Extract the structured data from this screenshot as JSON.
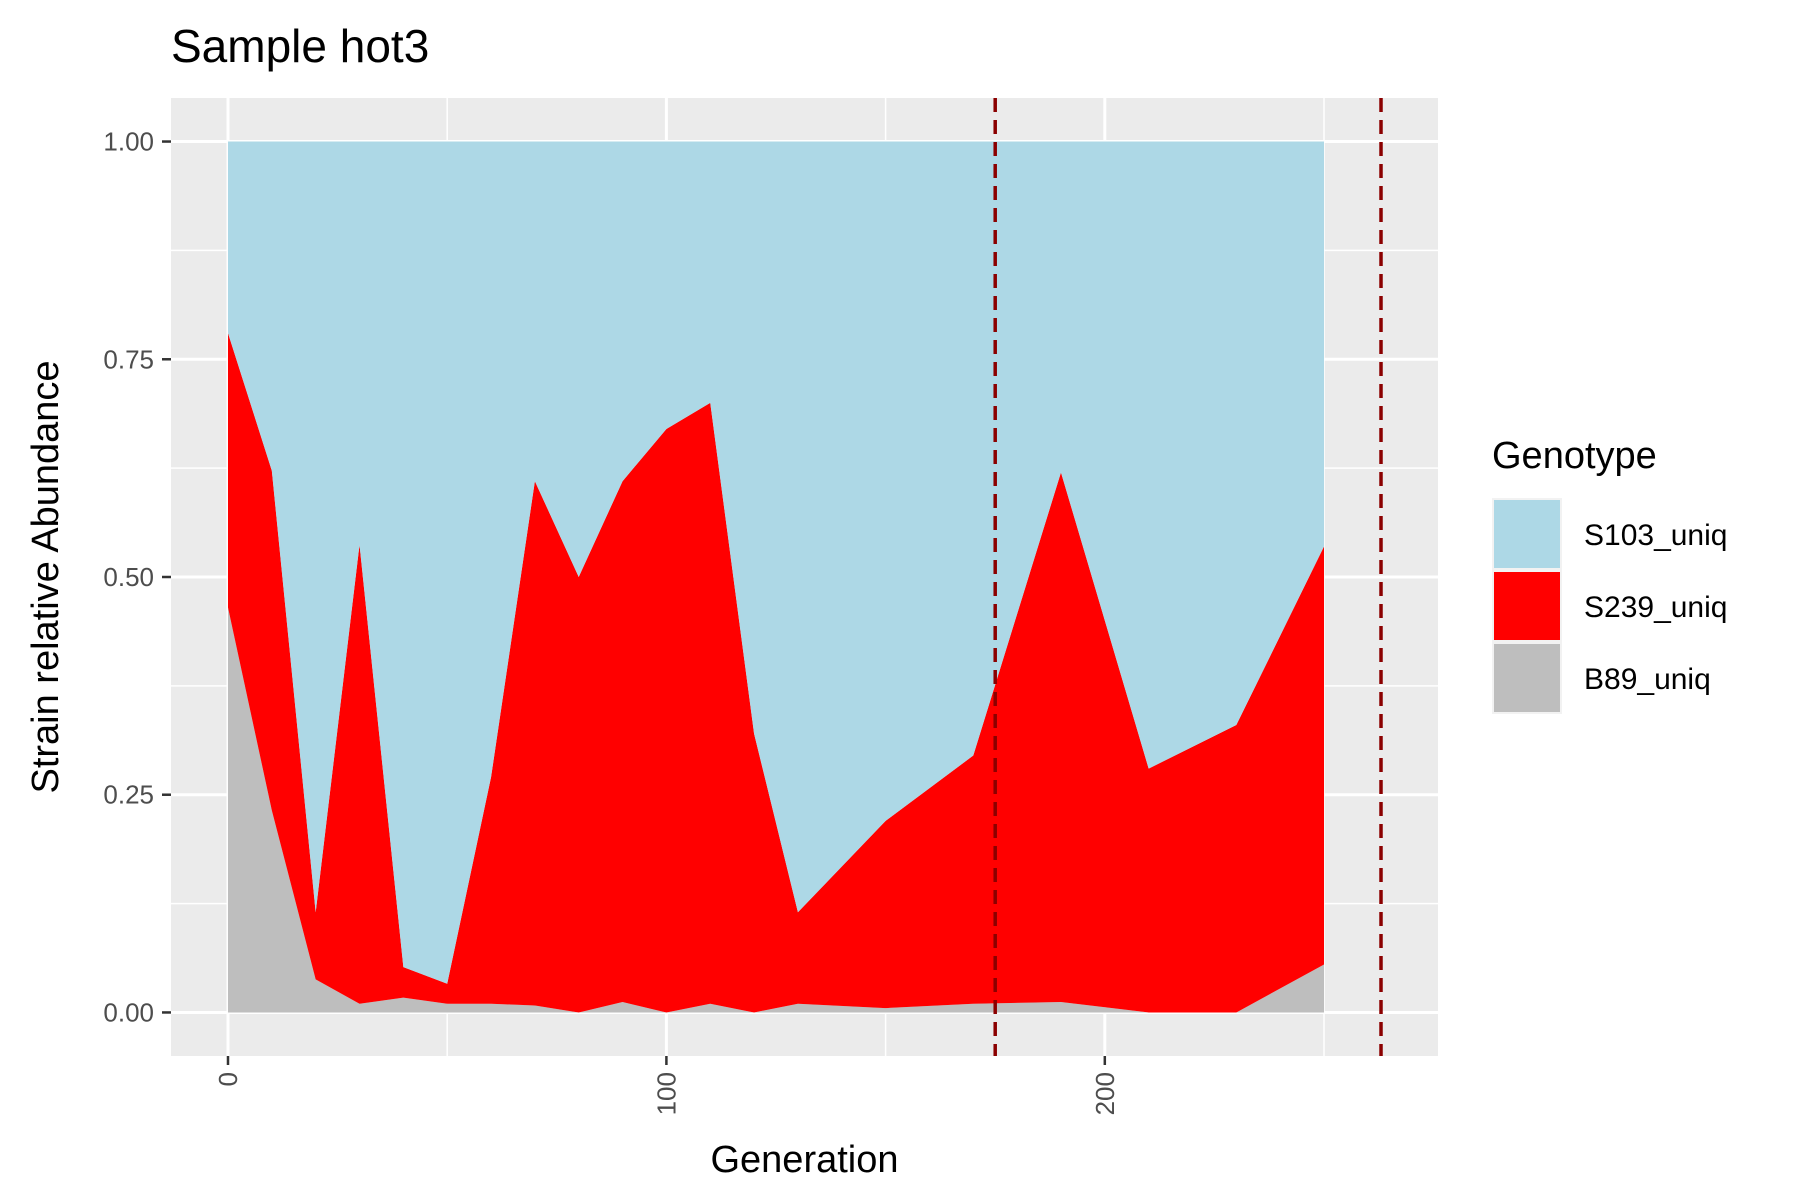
{
  "chart_data": {
    "type": "area",
    "stacked": true,
    "title": "Sample hot3",
    "xlabel": "Generation",
    "ylabel": "Strain relative Abundance",
    "xlim": [
      -13,
      276
    ],
    "ylim": [
      -0.05,
      1.05
    ],
    "x_ticks": [
      0,
      100,
      200
    ],
    "y_ticks": [
      0.0,
      0.25,
      0.5,
      0.75,
      1.0
    ],
    "x_tick_labels": [
      "0",
      "100",
      "200"
    ],
    "y_tick_labels": [
      "0.00",
      "0.25",
      "0.50",
      "0.75",
      "1.00"
    ],
    "grid": true,
    "legend_title": "Genotype",
    "legend_position": "right",
    "x": [
      0,
      10,
      20,
      30,
      40,
      50,
      60,
      70,
      80,
      90,
      100,
      110,
      120,
      130,
      150,
      170,
      190,
      210,
      230,
      250
    ],
    "series": [
      {
        "name": "S103_uniq",
        "color": "#add8e6",
        "values": [
          0.22,
          0.378,
          0.885,
          0.463,
          0.948,
          0.967,
          0.73,
          0.39,
          0.5,
          0.39,
          0.33,
          0.3,
          0.68,
          0.885,
          0.78,
          0.705,
          0.38,
          0.72,
          0.67,
          0.465
        ]
      },
      {
        "name": "S239_uniq",
        "color": "#ff0000",
        "values": [
          0.315,
          0.39,
          0.077,
          0.527,
          0.035,
          0.023,
          0.26,
          0.602,
          0.5,
          0.598,
          0.67,
          0.69,
          0.32,
          0.105,
          0.215,
          0.285,
          0.608,
          0.28,
          0.33,
          0.48
        ]
      },
      {
        "name": "B89_uniq",
        "color": "#bebebe",
        "values": [
          0.465,
          0.232,
          0.038,
          0.01,
          0.017,
          0.01,
          0.01,
          0.008,
          0.0,
          0.012,
          0.0,
          0.01,
          0.0,
          0.01,
          0.005,
          0.01,
          0.012,
          0.0,
          0.0,
          0.055
        ]
      }
    ],
    "vlines": [
      {
        "x": 175,
        "color": "#8b0000",
        "style": "dashed"
      },
      {
        "x": 263,
        "color": "#8b0000",
        "style": "dashed"
      }
    ],
    "panel_background": "#ebebeb",
    "grid_color": "#ffffff"
  }
}
